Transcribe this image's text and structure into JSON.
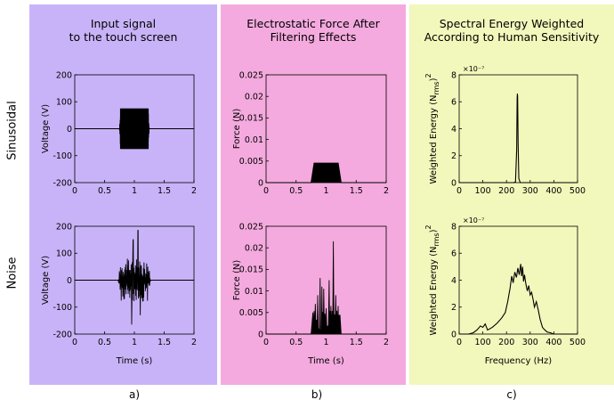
{
  "colors": {
    "panel_a": "#c9b3f8",
    "panel_b": "#f4aade",
    "panel_c": "#f2f7bb",
    "trace": "#000000"
  },
  "columns": [
    {
      "title_lines": [
        "Input signal",
        "to the touch screen"
      ],
      "sublabel": "a)"
    },
    {
      "title_lines": [
        "Electrostatic Force After",
        "Filtering Effects"
      ],
      "sublabel": "b)"
    },
    {
      "title_lines": [
        "Spectral Energy Weighted",
        "According to Human Sensitivity"
      ],
      "sublabel": "c)"
    }
  ],
  "rows": [
    "Sinusoidal",
    "Noise"
  ],
  "chart_data": [
    {
      "id": "a-sin",
      "type": "line",
      "style": "burst-sine",
      "title": "",
      "xlabel": "",
      "ylabel": "Voltage (V)",
      "xlim": [
        0,
        2
      ],
      "ylim": [
        -200,
        200
      ],
      "xticks": [
        "0",
        "0.5",
        "1",
        "1.5",
        "2"
      ],
      "yticks": [
        "200",
        "100",
        "0",
        "-100",
        "-200"
      ],
      "burst": {
        "start": 0.75,
        "end": 1.25,
        "amplitude": 75
      }
    },
    {
      "id": "b-sin",
      "type": "area",
      "style": "envelope",
      "title": "",
      "xlabel": "",
      "ylabel": "Force (N)",
      "xlim": [
        0,
        2
      ],
      "ylim": [
        0,
        0.025
      ],
      "xticks": [
        "0",
        "0.5",
        "1",
        "1.5",
        "2"
      ],
      "yticks": [
        "0.025",
        "0.02",
        "0.015",
        "0.01",
        "0.005",
        "0"
      ],
      "points": [
        [
          0,
          0
        ],
        [
          0.75,
          0
        ],
        [
          0.8,
          0.0045
        ],
        [
          1.2,
          0.0045
        ],
        [
          1.25,
          0
        ],
        [
          2,
          0
        ]
      ]
    },
    {
      "id": "c-sin",
      "type": "line",
      "style": "spectrum",
      "title": "",
      "xlabel": "",
      "ylabel": "Weighted Energy (N_rms)^2",
      "multiplier": "×10⁻⁷",
      "xlim": [
        0,
        500
      ],
      "ylim": [
        0,
        8
      ],
      "xticks": [
        "0",
        "100",
        "200",
        "300",
        "400",
        "500"
      ],
      "yticks": [
        "8",
        "6",
        "4",
        "2",
        "0"
      ],
      "points": [
        [
          0,
          0
        ],
        [
          230,
          0
        ],
        [
          238,
          0.05
        ],
        [
          243,
          2.5
        ],
        [
          245,
          6.3
        ],
        [
          246,
          6.6
        ],
        [
          247,
          6.4
        ],
        [
          249,
          3.0
        ],
        [
          252,
          0.3
        ],
        [
          258,
          0
        ],
        [
          500,
          0
        ]
      ]
    },
    {
      "id": "a-noise",
      "type": "line",
      "style": "burst-noise",
      "title": "",
      "xlabel": "Time (s)",
      "ylabel": "Voltage (V)",
      "xlim": [
        0,
        2
      ],
      "ylim": [
        -200,
        200
      ],
      "xticks": [
        "0",
        "0.5",
        "1",
        "1.5",
        "2"
      ],
      "yticks": [
        "200",
        "100",
        "0",
        "-100",
        "-200"
      ],
      "burst": {
        "start": 0.73,
        "end": 1.27,
        "peak_max": 185,
        "peak_min": -165
      }
    },
    {
      "id": "b-noise",
      "type": "area",
      "style": "spiky",
      "title": "",
      "xlabel": "Time (s)",
      "ylabel": "Force (N)",
      "xlim": [
        0,
        2
      ],
      "ylim": [
        0,
        0.025
      ],
      "xticks": [
        "0",
        "0.5",
        "1",
        "1.5",
        "2"
      ],
      "yticks": [
        "0.025",
        "0.02",
        "0.015",
        "0.01",
        "0.005",
        "0"
      ],
      "peaks": [
        [
          0.78,
          0.005
        ],
        [
          0.82,
          0.007
        ],
        [
          0.86,
          0.009
        ],
        [
          0.9,
          0.013
        ],
        [
          0.93,
          0.011
        ],
        [
          0.96,
          0.0105
        ],
        [
          1.0,
          0.006
        ],
        [
          1.05,
          0.0125
        ],
        [
          1.08,
          0.0065
        ],
        [
          1.12,
          0.0215
        ],
        [
          1.16,
          0.009
        ],
        [
          1.2,
          0.0065
        ],
        [
          1.23,
          0.0045
        ]
      ]
    },
    {
      "id": "c-noise",
      "type": "line",
      "style": "spectrum",
      "title": "",
      "xlabel": "Frequency (Hz)",
      "ylabel": "Weighted Energy (N_rms)^2",
      "multiplier": "×10⁻⁷",
      "xlim": [
        0,
        500
      ],
      "ylim": [
        0,
        8
      ],
      "xticks": [
        "0",
        "100",
        "200",
        "300",
        "400",
        "500"
      ],
      "yticks": [
        "8",
        "6",
        "4",
        "2",
        "0"
      ],
      "points": [
        [
          0,
          0
        ],
        [
          40,
          0
        ],
        [
          60,
          0.1
        ],
        [
          75,
          0.3
        ],
        [
          90,
          0.6
        ],
        [
          100,
          0.5
        ],
        [
          110,
          0.75
        ],
        [
          120,
          0.3
        ],
        [
          140,
          0.5
        ],
        [
          160,
          0.8
        ],
        [
          180,
          1.2
        ],
        [
          195,
          1.6
        ],
        [
          205,
          2.4
        ],
        [
          215,
          3.4
        ],
        [
          222,
          4.3
        ],
        [
          228,
          3.8
        ],
        [
          235,
          4.6
        ],
        [
          242,
          4.2
        ],
        [
          248,
          4.9
        ],
        [
          254,
          4.4
        ],
        [
          260,
          5.2
        ],
        [
          264,
          4.3
        ],
        [
          268,
          5.0
        ],
        [
          272,
          3.9
        ],
        [
          276,
          4.4
        ],
        [
          282,
          3.7
        ],
        [
          288,
          3.2
        ],
        [
          294,
          3.6
        ],
        [
          300,
          2.9
        ],
        [
          306,
          3.1
        ],
        [
          312,
          2.6
        ],
        [
          318,
          2.0
        ],
        [
          326,
          2.4
        ],
        [
          334,
          1.8
        ],
        [
          342,
          1.1
        ],
        [
          352,
          0.5
        ],
        [
          362,
          0.3
        ],
        [
          372,
          0.15
        ],
        [
          385,
          0.1
        ],
        [
          400,
          0
        ],
        [
          500,
          0
        ]
      ]
    }
  ]
}
